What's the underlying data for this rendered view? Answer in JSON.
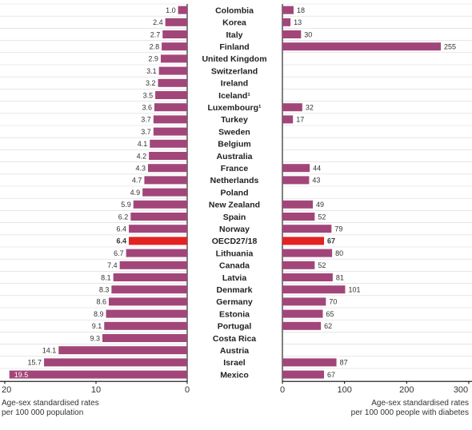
{
  "chart_data": [
    {
      "type": "bar",
      "orientation": "horizontal",
      "direction": "reversed",
      "categories": [
        "Colombia",
        "Korea",
        "Italy",
        "Finland",
        "United Kingdom",
        "Switzerland",
        "Ireland",
        "Iceland¹",
        "Luxembourg¹",
        "Turkey",
        "Sweden",
        "Belgium",
        "Australia",
        "France",
        "Netherlands",
        "Poland",
        "New Zealand",
        "Spain",
        "Norway",
        "OECD27/18",
        "Lithuania",
        "Canada",
        "Latvia",
        "Denmark",
        "Germany",
        "Estonia",
        "Portugal",
        "Costa Rica",
        "Austria",
        "Israel",
        "Mexico"
      ],
      "values": [
        1.0,
        2.4,
        2.7,
        2.8,
        2.9,
        3.1,
        3.2,
        3.5,
        3.6,
        3.7,
        3.7,
        4.1,
        4.2,
        4.3,
        4.7,
        4.9,
        5.9,
        6.2,
        6.4,
        6.4,
        6.7,
        7.4,
        8.1,
        8.3,
        8.6,
        8.9,
        9.1,
        9.3,
        14.1,
        15.7,
        19.5
      ],
      "value_labels": [
        "1.0",
        "2.4",
        "2.7",
        "2.8",
        "2.9",
        "3.1",
        "3.2",
        "3.5",
        "3.6",
        "3.7",
        "3.7",
        "4.1",
        "4.2",
        "4.3",
        "4.7",
        "4.9",
        "5.9",
        "6.2",
        "6.4",
        "6.4",
        "6.7",
        "7.4",
        "8.1",
        "8.3",
        "8.6",
        "8.9",
        "9.1",
        "9.3",
        "14.1",
        "15.7",
        "19.5"
      ],
      "xlim": [
        20,
        0
      ],
      "ticks": [
        "20",
        "10",
        "0"
      ],
      "xlabel_lines": [
        "Age-sex standardised rates",
        "per 100 000 population"
      ],
      "highlight": "OECD27/18"
    },
    {
      "type": "bar",
      "orientation": "horizontal",
      "categories": [
        "Colombia",
        "Korea",
        "Italy",
        "Finland",
        "United Kingdom",
        "Switzerland",
        "Ireland",
        "Iceland¹",
        "Luxembourg¹",
        "Turkey",
        "Sweden",
        "Belgium",
        "Australia",
        "France",
        "Netherlands",
        "Poland",
        "New Zealand",
        "Spain",
        "Norway",
        "OECD27/18",
        "Lithuania",
        "Canada",
        "Latvia",
        "Denmark",
        "Germany",
        "Estonia",
        "Portugal",
        "Costa Rica",
        "Austria",
        "Israel",
        "Mexico"
      ],
      "values": [
        18,
        13,
        30,
        255,
        null,
        null,
        null,
        null,
        32,
        17,
        null,
        null,
        null,
        44,
        43,
        null,
        49,
        52,
        79,
        67,
        80,
        52,
        81,
        101,
        70,
        65,
        62,
        null,
        null,
        87,
        67
      ],
      "value_labels": [
        "18",
        "13",
        "30",
        "255",
        "",
        "",
        "",
        "",
        "32",
        "17",
        "",
        "",
        "",
        "44",
        "43",
        "",
        "49",
        "52",
        "79",
        "67",
        "80",
        "52",
        "81",
        "101",
        "70",
        "65",
        "62",
        "",
        "",
        "87",
        "67"
      ],
      "xlim": [
        0,
        300
      ],
      "ticks": [
        "0",
        "100",
        "200",
        "300"
      ],
      "xlabel_lines": [
        "Age-sex standardised rates",
        "per 100 000 people with diabetes"
      ],
      "highlight": "OECD27/18"
    }
  ],
  "colors": {
    "bar": "#a2467a",
    "highlight": "#e32222",
    "grid": "#d8d8d8",
    "text": "#333333"
  }
}
